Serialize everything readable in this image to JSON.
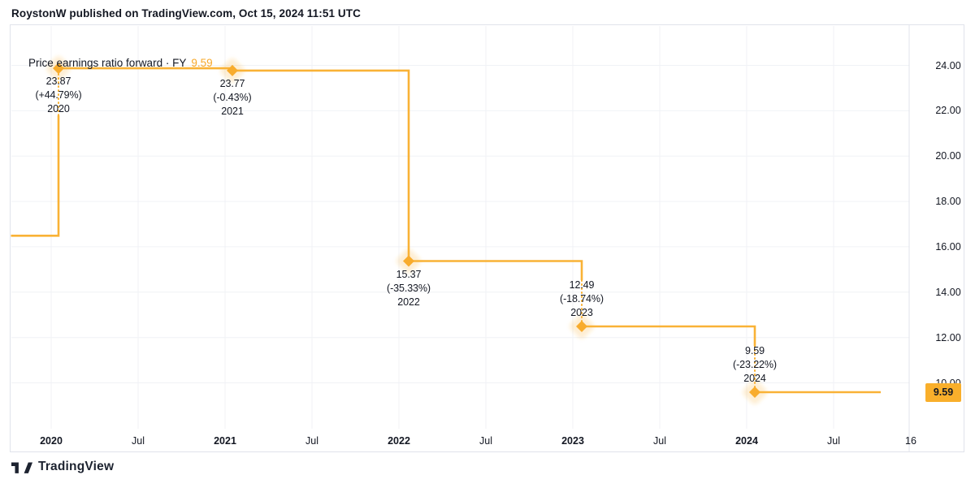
{
  "header": {
    "attribution": "RoystonW published on TradingView.com, Oct 15, 2024 11:51 UTC"
  },
  "chart": {
    "title": "Price earnings ratio forward · FY",
    "title_value": "9.59",
    "price_axis_label": "9.59"
  },
  "colors": {
    "accent": "#F8AC2D",
    "line": "#F9B236",
    "halo": "rgba(248,172,45,0.20)",
    "text": "#131722",
    "grid": "#F0F2F6",
    "border": "#E0E3EB"
  },
  "chart_data": {
    "type": "line",
    "style": "step-line-with-diamond-markers",
    "title": "Price earnings ratio forward · FY",
    "x": [
      "2020",
      "2021",
      "2022",
      "2023",
      "2024"
    ],
    "values": [
      23.87,
      23.77,
      15.37,
      12.49,
      9.59
    ],
    "pct_changes": [
      "(+44.79%)",
      "(-0.43%)",
      "(-35.33%)",
      "(-18.74%)",
      "(-23.22%)"
    ],
    "label_sides": [
      "below",
      "below",
      "below",
      "above",
      "above"
    ],
    "entry_value_before_2020": 16.49,
    "current_value": 9.59,
    "y_axis_ticks": [
      "24.00",
      "22.00",
      "20.00",
      "18.00",
      "16.00",
      "14.00",
      "12.00",
      "10.00"
    ],
    "y_axis_tick_values": [
      24,
      22,
      20,
      18,
      16,
      14,
      12,
      10
    ],
    "x_axis_ticks": [
      "2020",
      "Jul",
      "2021",
      "Jul",
      "2022",
      "Jul",
      "2023",
      "Jul",
      "2024",
      "Jul",
      "16"
    ],
    "ylim": [
      8.9,
      24.9
    ],
    "grid": true,
    "legend_position": "none"
  },
  "footer": {
    "brand": "TradingView"
  }
}
